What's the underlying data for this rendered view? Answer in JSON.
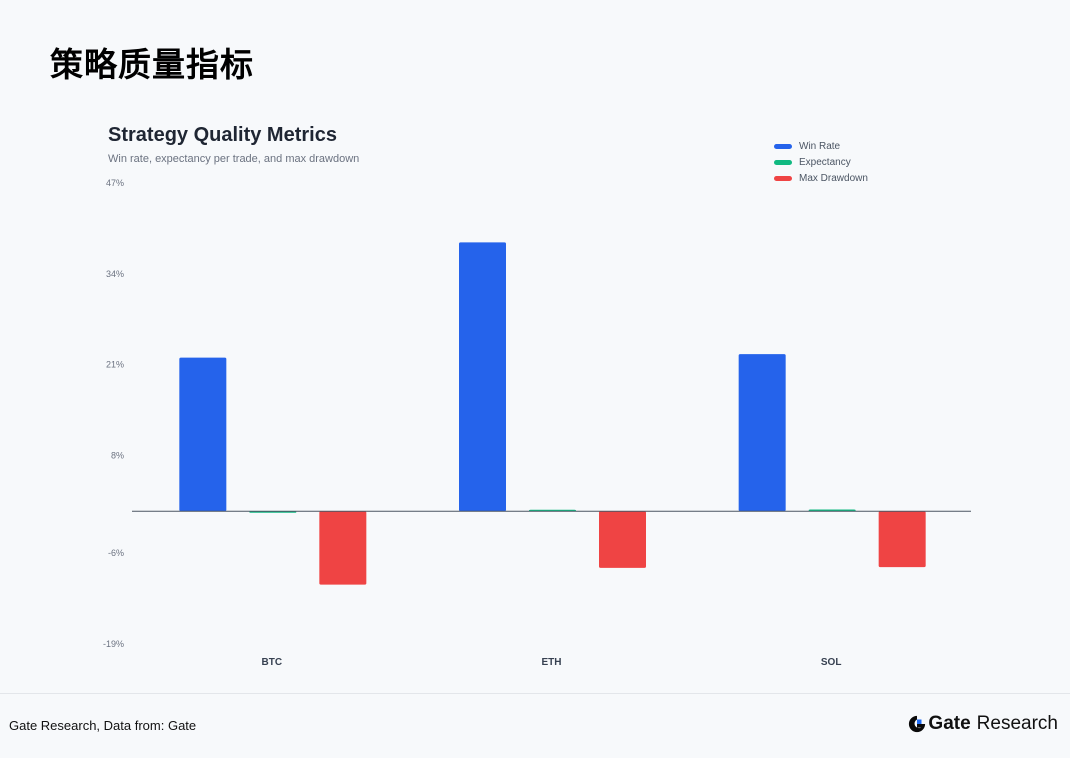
{
  "page": {
    "heading": "策略质量指标"
  },
  "chart_data": {
    "type": "bar",
    "title": "Strategy Quality Metrics",
    "subtitle": "Win rate, expectancy per trade, and max drawdown",
    "categories": [
      "BTC",
      "ETH",
      "SOL"
    ],
    "series": [
      {
        "name": "Win Rate",
        "color": "#2563eb",
        "values": [
          22,
          38.5,
          22.5
        ]
      },
      {
        "name": "Expectancy",
        "color": "#10b981",
        "values": [
          -0.1,
          0.15,
          0.25
        ]
      },
      {
        "name": "Max Drawdown",
        "color": "#ef4444",
        "values": [
          -10.5,
          -8.1,
          -8.0
        ]
      }
    ],
    "yticks": [
      "47%",
      "34%",
      "21%",
      "8%",
      "-6%",
      "-19%"
    ],
    "ytick_values": [
      47,
      34,
      21,
      8,
      -6,
      -19
    ],
    "ylim": [
      -19,
      47
    ],
    "legend_position": "top-right",
    "grid": false
  },
  "footer": {
    "source": "Gate Research, Data from: Gate",
    "brand_name": "Gate",
    "brand_suffix": "Research"
  }
}
